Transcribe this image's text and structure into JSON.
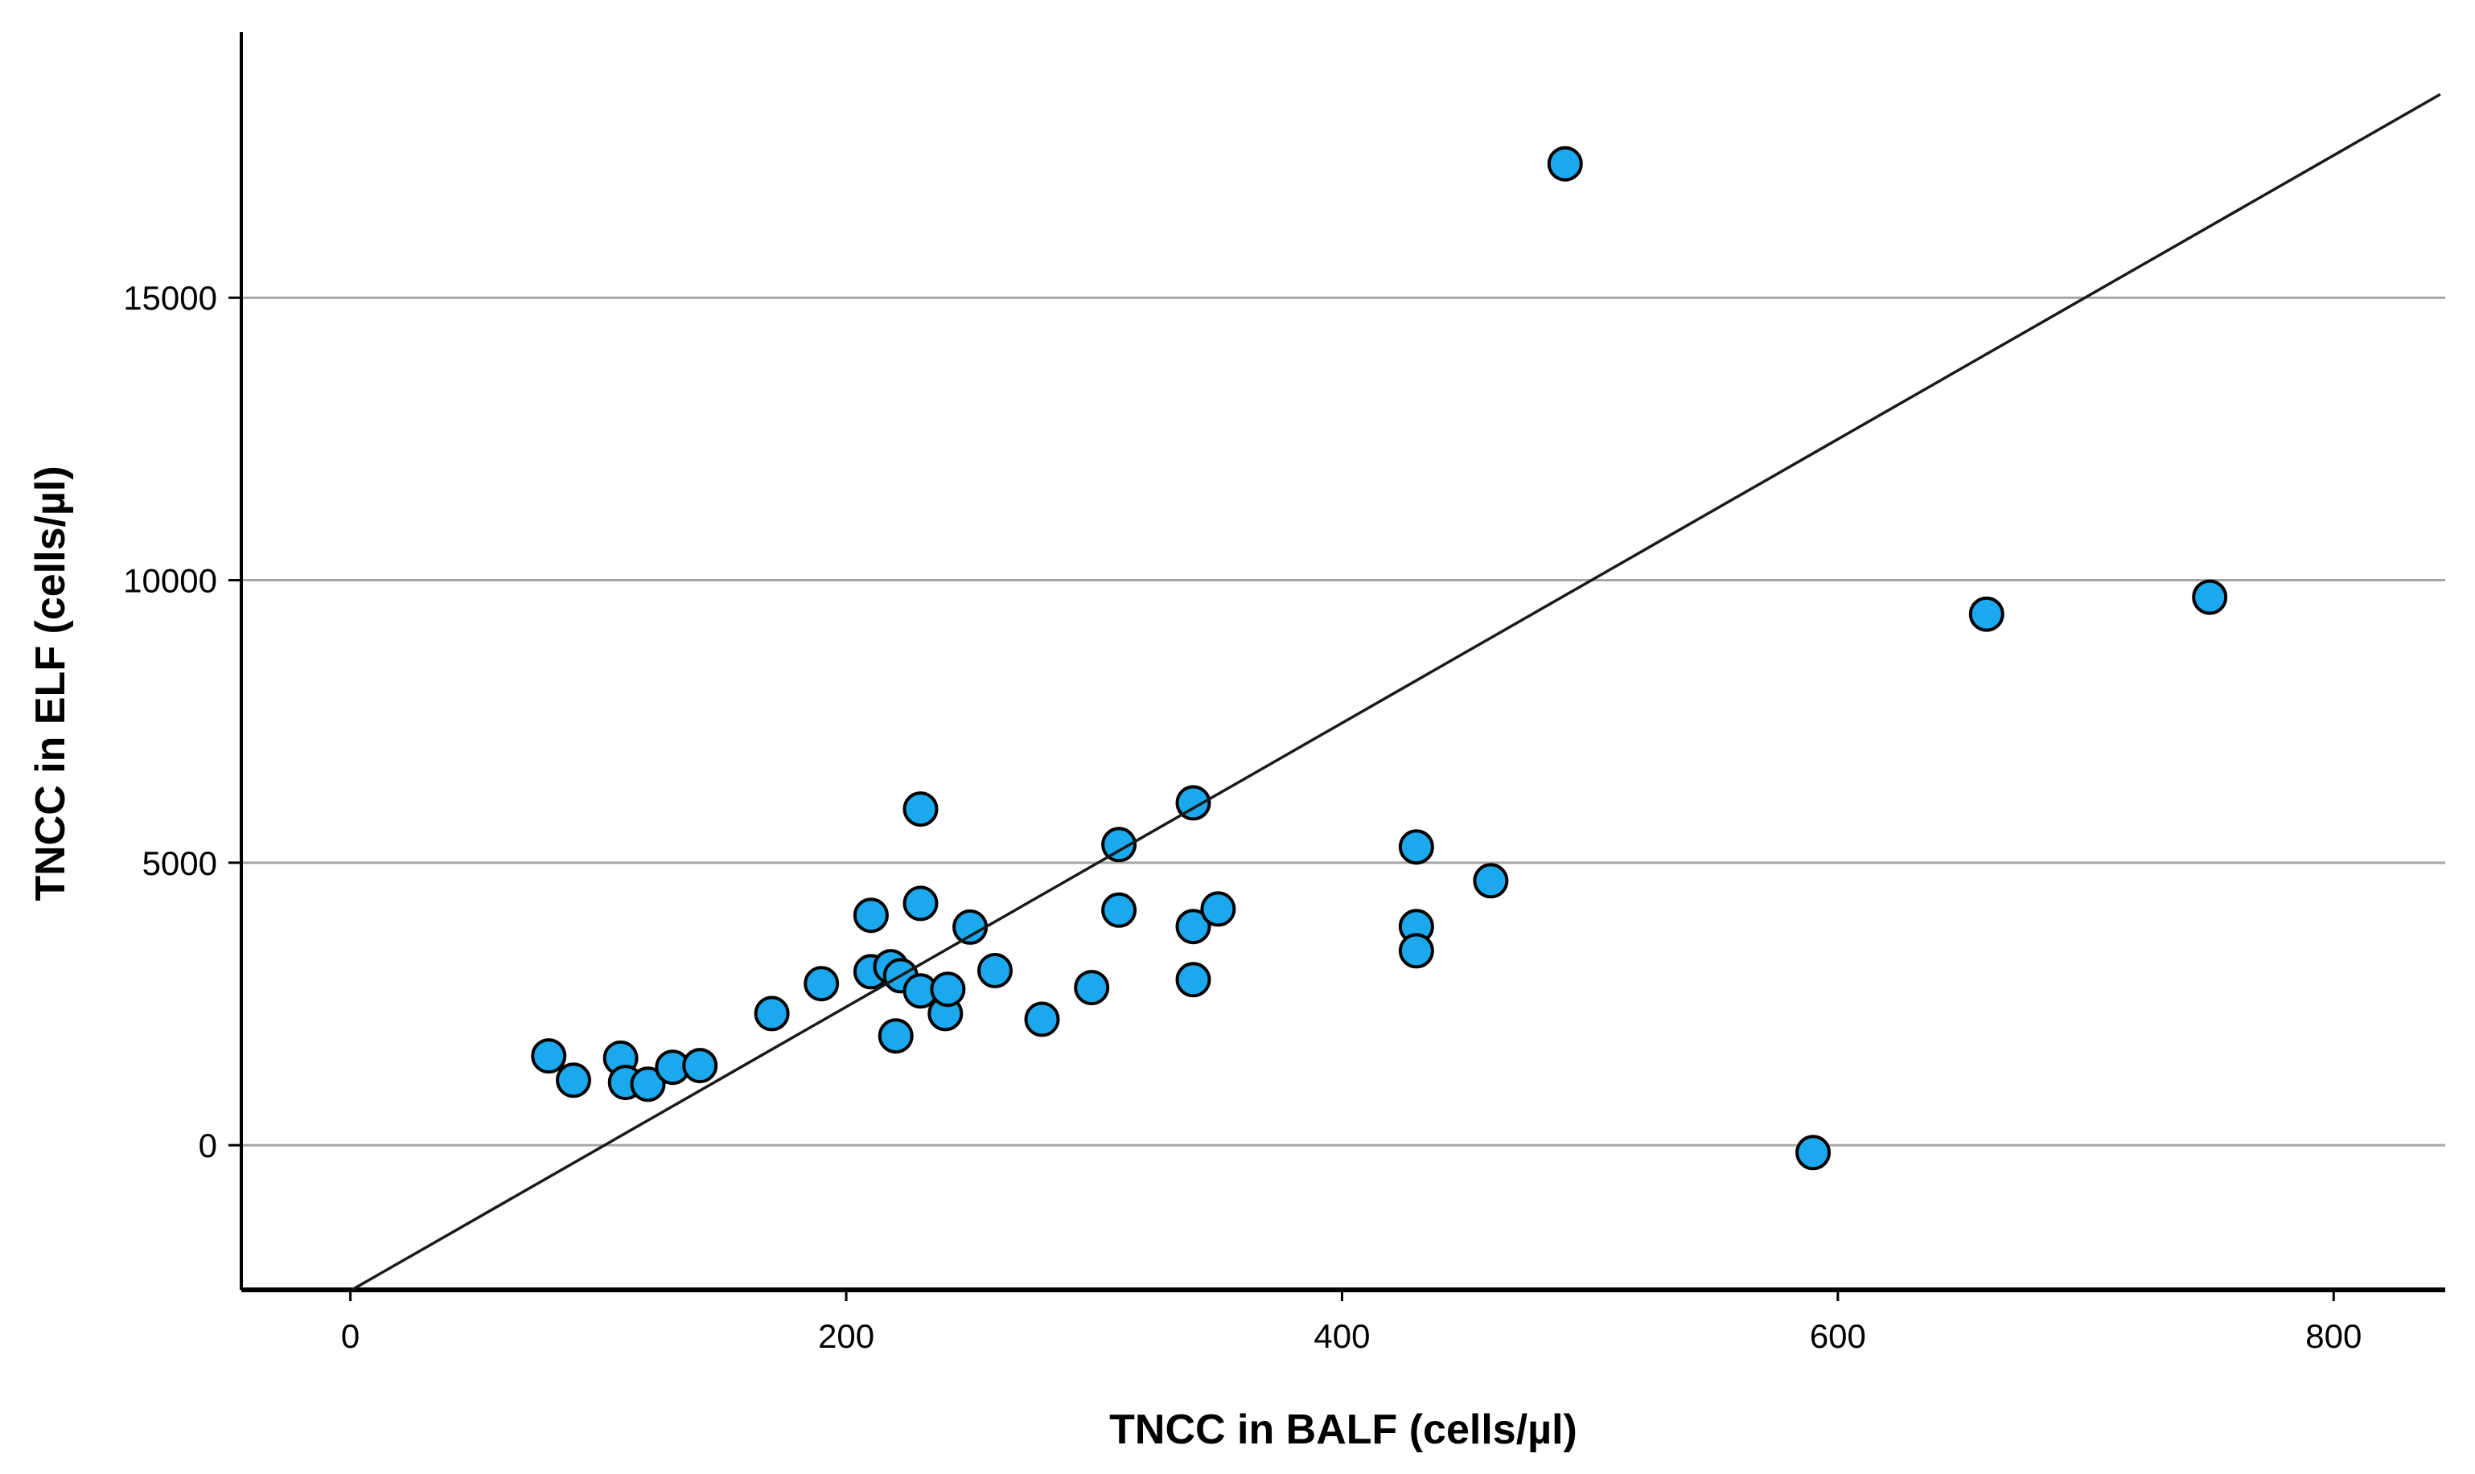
{
  "chart_data": {
    "type": "scatter",
    "title": "",
    "xlabel": "TNCC in BALF (cells/µl)",
    "ylabel": "TNCC in ELF (cells/µl)",
    "x_ticks": [
      0,
      200,
      400,
      600,
      800
    ],
    "y_ticks": [
      0,
      5000,
      10000,
      15000
    ],
    "xlim": [
      -44,
      845
    ],
    "ylim": [
      -2560,
      19700
    ],
    "grid": "horizontal-only",
    "legend": "none",
    "marker": "filled-circle",
    "points": [
      [
        80,
        1580
      ],
      [
        90,
        1150
      ],
      [
        109,
        1540
      ],
      [
        111,
        1110
      ],
      [
        120,
        1080
      ],
      [
        130,
        1380
      ],
      [
        141,
        1410
      ],
      [
        170,
        2330
      ],
      [
        190,
        2860
      ],
      [
        210,
        3070
      ],
      [
        218,
        3160
      ],
      [
        222,
        3000
      ],
      [
        210,
        4070
      ],
      [
        220,
        1935
      ],
      [
        230,
        5950
      ],
      [
        230,
        4280
      ],
      [
        230,
        2730
      ],
      [
        240,
        2330
      ],
      [
        241,
        2760
      ],
      [
        250,
        3860
      ],
      [
        260,
        3090
      ],
      [
        279,
        2230
      ],
      [
        299,
        2790
      ],
      [
        310,
        5320
      ],
      [
        310,
        4160
      ],
      [
        340,
        6060
      ],
      [
        340,
        3870
      ],
      [
        340,
        2930
      ],
      [
        350,
        4180
      ],
      [
        430,
        5280
      ],
      [
        430,
        3870
      ],
      [
        430,
        3440
      ],
      [
        460,
        4680
      ],
      [
        490,
        17370
      ],
      [
        590,
        -130
      ],
      [
        660,
        9400
      ],
      [
        750,
        9700
      ]
    ],
    "fit_line": {
      "x1": 0.6,
      "y1": -2560,
      "x2": 843,
      "y2": 18600,
      "slope": 25.1,
      "intercept": -2580
    },
    "colors": {
      "point_fill": "#1ba8ec",
      "point_stroke": "#000000",
      "fit_line": "#1a1a1a",
      "gridline": "#a6a6a6",
      "axis": "#000000",
      "text": "#000000",
      "background": "#ffffff"
    }
  }
}
